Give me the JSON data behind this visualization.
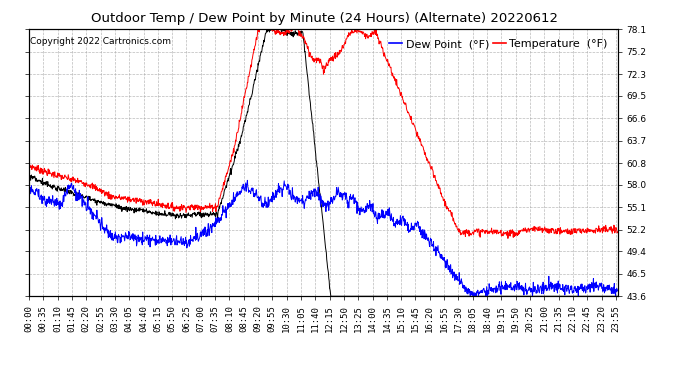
{
  "title": "Outdoor Temp / Dew Point by Minute (24 Hours) (Alternate) 20220612",
  "copyright": "Copyright 2022 Cartronics.com",
  "legend_dew": "Dew Point  (°F)",
  "legend_temp": "Temperature  (°F)",
  "yticks": [
    43.6,
    46.5,
    49.4,
    52.2,
    55.1,
    58.0,
    60.8,
    63.7,
    66.6,
    69.5,
    72.3,
    75.2,
    78.1
  ],
  "ymin": 43.6,
  "ymax": 78.1,
  "temp_color": "red",
  "dew_color": "blue",
  "black_color": "black",
  "background_color": "#ffffff",
  "grid_color": "#aaaaaa",
  "title_fontsize": 9.5,
  "tick_fontsize": 6.5,
  "legend_fontsize": 8,
  "copyright_fontsize": 6.5
}
